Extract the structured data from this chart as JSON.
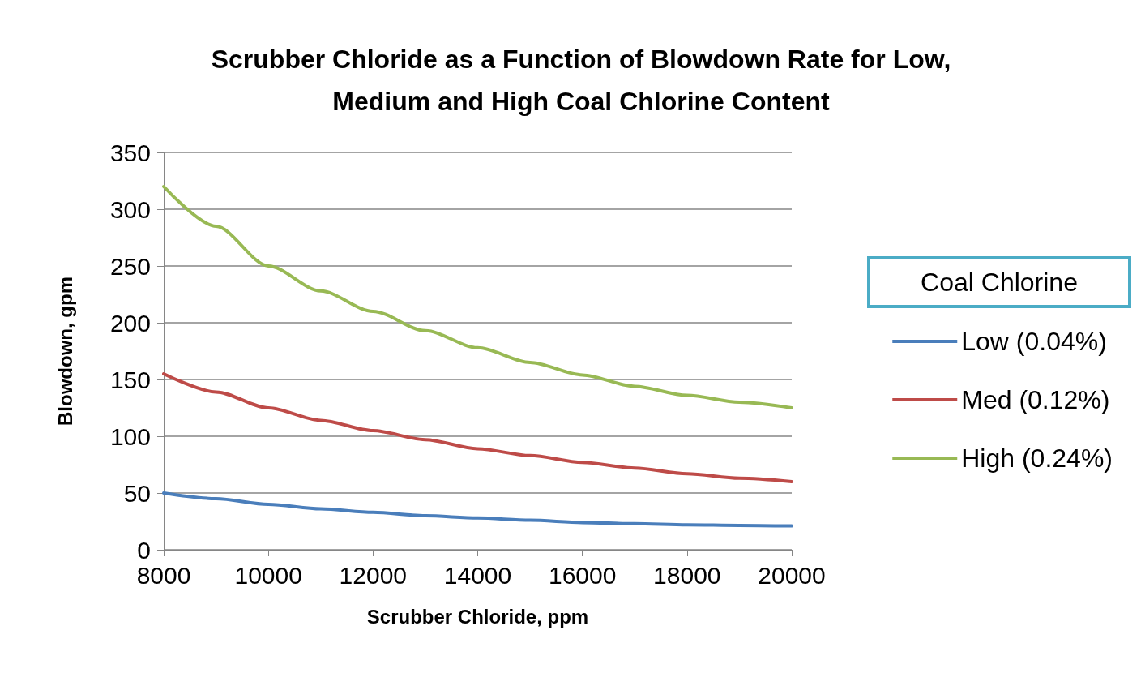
{
  "chart_data": {
    "type": "line",
    "title": "Scrubber Chloride as a Function of Blowdown Rate for Low,\nMedium and High Coal Chlorine Content",
    "xlabel": "Scrubber Chloride, ppm",
    "ylabel": "Blowdown, gpm",
    "legend_title": "Coal Chlorine",
    "x": [
      8000,
      9000,
      10000,
      11000,
      12000,
      13000,
      14000,
      15000,
      16000,
      17000,
      18000,
      19000,
      20000
    ],
    "series": [
      {
        "name": "Low (0.04%)",
        "color": "#4a7ebb",
        "values": [
          50,
          45,
          40,
          36,
          33,
          30,
          28,
          26,
          24,
          23,
          22,
          21.5,
          21
        ]
      },
      {
        "name": "Med (0.12%)",
        "color": "#be4b48",
        "values": [
          155,
          139,
          125,
          114,
          105,
          97,
          89,
          83,
          77,
          72,
          67,
          63,
          60
        ]
      },
      {
        "name": "High (0.24%)",
        "color": "#98b954",
        "values": [
          320,
          285,
          250,
          228,
          210,
          193,
          178,
          165,
          154,
          144,
          136,
          130,
          125
        ]
      }
    ],
    "xlim": [
      8000,
      20000
    ],
    "xticks": [
      8000,
      10000,
      12000,
      14000,
      16000,
      18000,
      20000
    ],
    "ylim": [
      0,
      350
    ],
    "yticks": [
      0,
      50,
      100,
      150,
      200,
      250,
      300,
      350
    ],
    "grid": "y",
    "legend": "right",
    "marker": "none",
    "line_style": "solid"
  }
}
